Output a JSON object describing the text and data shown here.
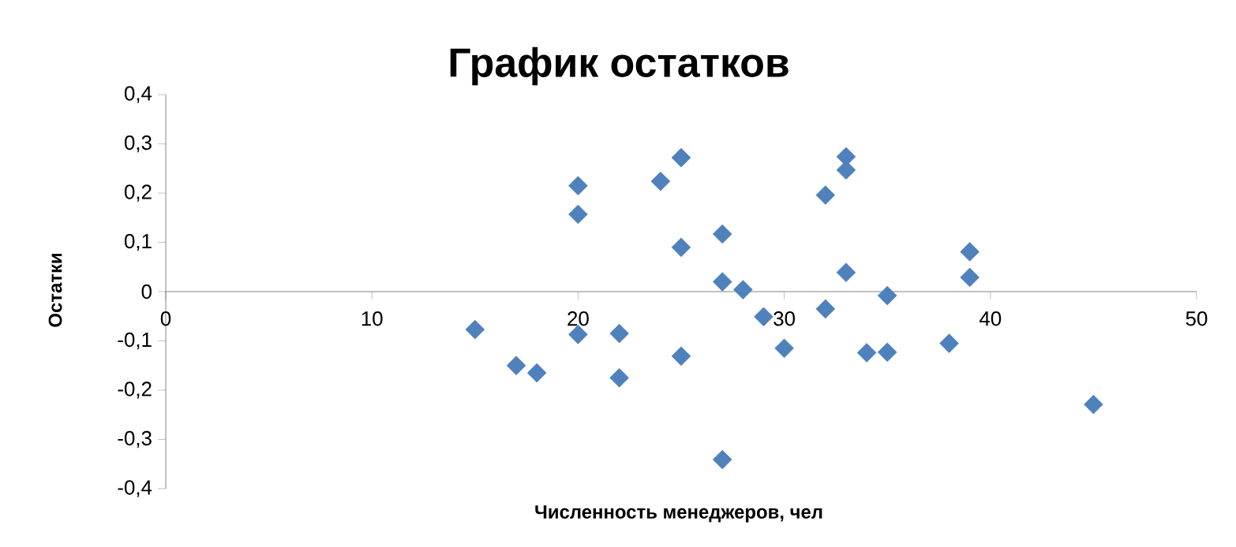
{
  "chart_data": {
    "type": "scatter",
    "title": "График остатков",
    "xlabel": "Численность менеджеров, чел",
    "ylabel": "Остатки",
    "x": [
      15,
      17,
      18,
      20,
      20,
      20,
      22,
      22,
      24,
      25,
      25,
      25,
      27,
      27,
      27,
      28,
      29,
      30,
      32,
      32,
      33,
      33,
      33,
      34,
      35,
      35,
      38,
      39,
      39,
      45
    ],
    "series": [
      {
        "color": "#4f81bd",
        "values": [
          -0.077,
          -0.15,
          -0.165,
          0.215,
          0.157,
          -0.087,
          -0.085,
          -0.175,
          0.224,
          0.272,
          0.09,
          -0.131,
          0.117,
          0.02,
          -0.341,
          0.004,
          -0.051,
          -0.115,
          0.196,
          -0.035,
          0.274,
          0.247,
          0.039,
          -0.124,
          -0.008,
          -0.123,
          -0.105,
          0.081,
          0.029,
          -0.229
        ]
      }
    ],
    "marker": "diamond",
    "xlim": [
      0,
      50
    ],
    "xticks": [
      0,
      10,
      20,
      30,
      40,
      50
    ],
    "ylim": [
      -0.4,
      0.4
    ],
    "yticks": [
      {
        "value": -0.4,
        "label": "-0,4"
      },
      {
        "value": -0.3,
        "label": "-0,3"
      },
      {
        "value": -0.2,
        "label": "-0,2"
      },
      {
        "value": -0.1,
        "label": "-0,1"
      },
      {
        "value": 0,
        "label": "0"
      },
      {
        "value": 0.1,
        "label": "0,1"
      },
      {
        "value": 0.2,
        "label": "0,2"
      },
      {
        "value": 0.3,
        "label": "0,3"
      },
      {
        "value": 0.4,
        "label": "0,4"
      }
    ]
  }
}
